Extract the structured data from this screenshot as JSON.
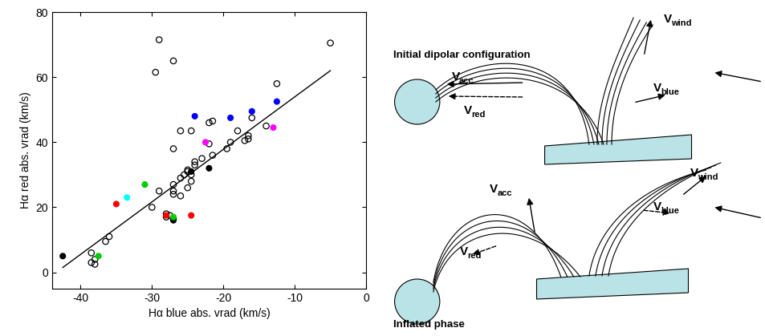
{
  "chart_data": {
    "type": "scatter",
    "x_label": "Hα blue abs. vrad (km/s)",
    "y_label": "Hα red abs. vrad (km/s)",
    "xlim": [
      -44,
      0
    ],
    "xticks": [
      -40,
      -30,
      -20,
      -10,
      0
    ],
    "ylim": [
      -5,
      80
    ],
    "yticks": [
      0,
      20,
      40,
      60,
      80
    ],
    "grid": false,
    "series": [
      {
        "type": "scatter",
        "marker": "open_circle",
        "color": "#000000",
        "x": [
          -29,
          -27,
          -29.5,
          -5,
          -12.5,
          -21.5,
          -22,
          -16,
          -26,
          -24.5,
          -14,
          -18,
          -16.5,
          -16.5,
          -17,
          -19,
          -19.5,
          -27,
          -22,
          -21.5,
          -23,
          -24,
          -24,
          -25,
          -24.5,
          -25.5,
          -26,
          -24.5,
          -27,
          -25,
          -27,
          -29,
          -27,
          -26,
          -30,
          -28,
          -27.5,
          -28,
          -27,
          -36,
          -36.5,
          -38.5,
          -38,
          -38.5,
          -38,
          -25
        ],
        "values": [
          71.5,
          65,
          61.5,
          70.5,
          58,
          46.5,
          46,
          47.5,
          43.5,
          43.5,
          45,
          43.5,
          42,
          41,
          40.5,
          40,
          38,
          38,
          39.5,
          36,
          35,
          34,
          33,
          31,
          30,
          30,
          29,
          28,
          27,
          26,
          25,
          25,
          24,
          23.5,
          20,
          18,
          17.5,
          17,
          16.5,
          11,
          9.5,
          6,
          4,
          3,
          2.5,
          31.5
        ]
      },
      {
        "type": "scatter",
        "marker": "circle",
        "x": [
          -42.5,
          -24.5,
          -22,
          -27,
          -24,
          -19,
          -16,
          -12.5,
          -22.5,
          -13,
          -35,
          -28,
          -24.5,
          -31,
          -27,
          -37.5,
          -33.5
        ],
        "values": [
          5,
          31,
          32,
          16,
          48,
          47.5,
          49.5,
          52.5,
          40,
          44.5,
          21,
          17.5,
          17.5,
          27,
          17,
          5,
          23
        ],
        "colors": [
          "#000000",
          "#000000",
          "#000000",
          "#000000",
          "#0000ff",
          "#0000ff",
          "#0000ff",
          "#0000ff",
          "#ff00ff",
          "#ff00ff",
          "#ff0000",
          "#ff0000",
          "#ff0000",
          "#00cc00",
          "#00cc00",
          "#00cc00",
          "#00ffff"
        ]
      },
      {
        "type": "line",
        "color": "#000000",
        "line_style": "solid",
        "x": [
          -42.5,
          -5
        ],
        "values": [
          1.5,
          62
        ]
      }
    ]
  },
  "diagram": {
    "panels": [
      {
        "title": "Initial dipolar configuration",
        "labels": [
          {
            "main": "V",
            "sub": "acc"
          },
          {
            "main": "V",
            "sub": "red"
          },
          {
            "main": "V",
            "sub": "wind"
          },
          {
            "main": "V",
            "sub": "blue"
          }
        ]
      },
      {
        "title": "Inflated phase",
        "labels": [
          {
            "main": "V",
            "sub": "acc"
          },
          {
            "main": "V",
            "sub": "red"
          },
          {
            "main": "V",
            "sub": "wind"
          },
          {
            "main": "V",
            "sub": "blue"
          }
        ]
      }
    ]
  }
}
